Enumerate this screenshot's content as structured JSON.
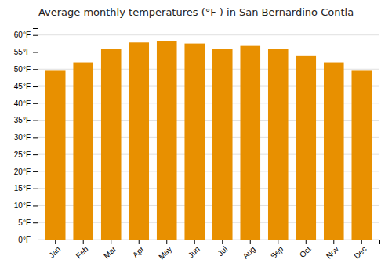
{
  "chart_data": {
    "type": "bar",
    "title": "Average monthly temperatures (°F ) in San Bernardino Contla",
    "categories": [
      "Jan",
      "Feb",
      "Mar",
      "Apr",
      "May",
      "Jun",
      "Jul",
      "Aug",
      "Sep",
      "Oct",
      "Nov",
      "Dec"
    ],
    "values": [
      49.5,
      52.0,
      56.0,
      57.8,
      58.3,
      57.5,
      56.0,
      56.8,
      56.0,
      54.0,
      52.0,
      49.5
    ],
    "color": "#E89000",
    "ylim": [
      0,
      62
    ],
    "yticks": [
      {
        "value": 0,
        "label": "0°F"
      },
      {
        "value": 5,
        "label": "5°F"
      },
      {
        "value": 10,
        "label": "10°F"
      },
      {
        "value": 15,
        "label": "15°F"
      },
      {
        "value": 20,
        "label": "20°F"
      },
      {
        "value": 25,
        "label": "25°F"
      },
      {
        "value": 30,
        "label": "30°F"
      },
      {
        "value": 35,
        "label": "35°F"
      },
      {
        "value": 40,
        "label": "40°F"
      },
      {
        "value": 45,
        "label": "45°F"
      },
      {
        "value": 50,
        "label": "50°F"
      },
      {
        "value": 55,
        "label": "55°F"
      },
      {
        "value": 60,
        "label": "60°F"
      }
    ],
    "grid": true
  }
}
